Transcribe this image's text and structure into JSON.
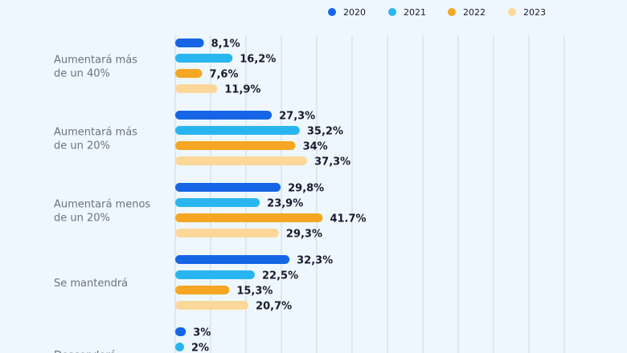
{
  "chart_data": {
    "type": "bar",
    "orientation": "horizontal",
    "grid": true,
    "legend_position": "top-right",
    "categories": [
      [
        "Aumentará más",
        "de un 40%"
      ],
      [
        "Aumentará más",
        "de un 20%"
      ],
      [
        "Aumentará menos",
        "de un 20%"
      ],
      [
        "Se mantendrá"
      ],
      [
        "Descenderá"
      ]
    ],
    "series": [
      {
        "name": "2020",
        "color": "#1565e6",
        "values": [
          8.1,
          27.3,
          29.8,
          32.3,
          3
        ],
        "labels": [
          "8,1%",
          "27,3%",
          "29,8%",
          "32,3%",
          "3%"
        ]
      },
      {
        "name": "2021",
        "color": "#29b6f0",
        "values": [
          16.2,
          35.2,
          23.9,
          22.5,
          2
        ],
        "labels": [
          "16,2%",
          "35,2%",
          "23,9%",
          "22,5%",
          "2%"
        ]
      },
      {
        "name": "2022",
        "color": "#f5a623",
        "values": [
          7.6,
          34,
          41.7,
          15.3,
          null
        ],
        "labels": [
          "7,6%",
          "34%",
          "41.7%",
          "15,3%",
          ""
        ]
      },
      {
        "name": "2023",
        "color": "#fcd79a",
        "values": [
          11.9,
          37.3,
          29.3,
          20.7,
          null
        ],
        "labels": [
          "11,9%",
          "37,3%",
          "29,3%",
          "20,7%",
          ""
        ]
      }
    ]
  }
}
